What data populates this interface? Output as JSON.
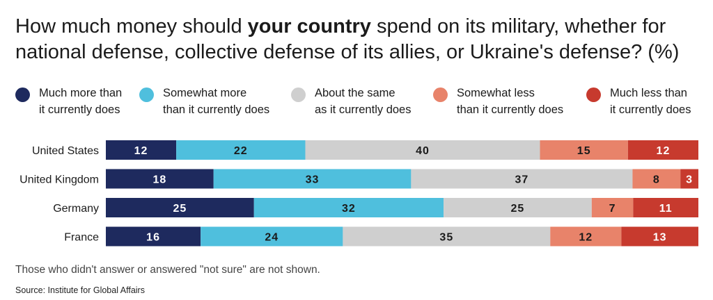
{
  "title": {
    "pre": "How much money should ",
    "bold": "your country",
    "post": " spend on its military, whether for national defense, collective defense of its allies, or Ukraine's defense? (%)"
  },
  "legend": [
    {
      "label": "Much more than\nit currently does",
      "color": "#1e2a5e"
    },
    {
      "label": "Somewhat more\nthan it currently does",
      "color": "#4fbfdd"
    },
    {
      "label": "About the same\nas it currently does",
      "color": "#cfcfcf"
    },
    {
      "label": "Somewhat less\nthan it currently does",
      "color": "#e8836a"
    },
    {
      "label": "Much less than\nit currently does",
      "color": "#c73a2e"
    }
  ],
  "chart_data": {
    "type": "bar",
    "orientation": "horizontal",
    "stacked": true,
    "title": "How much money should your country spend on its military, whether for national defense, collective defense of its allies, or Ukraine's defense? (%)",
    "categories": [
      "United States",
      "United Kingdom",
      "Germany",
      "France"
    ],
    "series": [
      {
        "name": "Much more than it currently does",
        "color": "#1e2a5e",
        "values": [
          12,
          18,
          25,
          16
        ]
      },
      {
        "name": "Somewhat more than it currently does",
        "color": "#4fbfdd",
        "values": [
          22,
          33,
          32,
          24
        ]
      },
      {
        "name": "About the same as it currently does",
        "color": "#cfcfcf",
        "values": [
          40,
          37,
          25,
          35
        ]
      },
      {
        "name": "Somewhat less than it currently does",
        "color": "#e8836a",
        "values": [
          15,
          8,
          7,
          12
        ]
      },
      {
        "name": "Much less than it currently does",
        "color": "#c73a2e",
        "values": [
          12,
          3,
          11,
          13
        ]
      }
    ],
    "label_colors": [
      "#ffffff",
      "#1a1a1a",
      "#1a1a1a",
      "#1a1a1a",
      "#ffffff"
    ],
    "grid": false,
    "legend_position": "top"
  },
  "footnote": "Those who didn't answer or answered \"not sure\" are not shown.",
  "source": "Source: Institute for Global Affairs"
}
